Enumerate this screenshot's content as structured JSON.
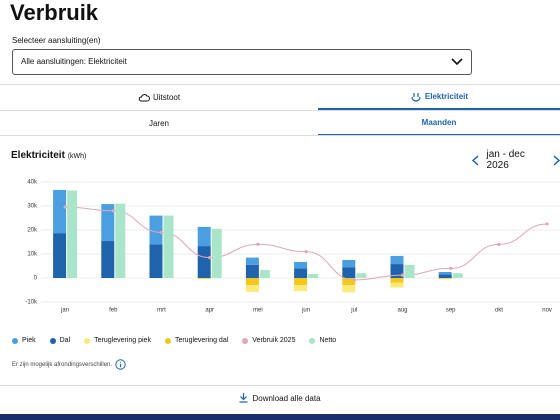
{
  "header": {
    "title": "Verbruik"
  },
  "select": {
    "label": "Selecteer aansluiting(en)",
    "value": "Alle aansluitingen: Elektriciteit"
  },
  "tabs": [
    "Uitstoot",
    "Elektriciteit"
  ],
  "periods": [
    "Jaren",
    "Maanden"
  ],
  "note": "Er zijn mogelijk afrondingsverschillen.",
  "download": "Download alle data",
  "chart_data": {
    "type": "bar",
    "title": "Elektriciteit",
    "unit": "(kWh)",
    "period": "jan - dec 2026",
    "categories": [
      "jan",
      "feb",
      "mrt",
      "apr",
      "mei",
      "jun",
      "jul",
      "aug",
      "sep",
      "okt",
      "nov"
    ],
    "ylim": [
      -10000,
      40000
    ],
    "yticks": [
      {
        "value": -10000,
        "label": "-10k"
      },
      {
        "value": 0,
        "label": "0"
      },
      {
        "value": 10000,
        "label": "10k"
      },
      {
        "value": 20000,
        "label": "20k"
      },
      {
        "value": 30000,
        "label": "30k"
      },
      {
        "value": 40000,
        "label": "40k"
      }
    ],
    "grid": true,
    "series": [
      {
        "name": "Piek",
        "type": "stacked-bar",
        "color": "#4b9fe1",
        "values": [
          18000,
          15400,
          12000,
          8000,
          3000,
          2700,
          3000,
          3400,
          1000,
          null,
          null
        ]
      },
      {
        "name": "Dal",
        "type": "stacked-bar",
        "color": "#1f63ad",
        "values": [
          18700,
          15400,
          14000,
          13300,
          5500,
          4000,
          4500,
          5800,
          1500,
          null,
          null
        ]
      },
      {
        "name": "Teruglevering piek",
        "type": "stacked-bar",
        "color": "#fde978",
        "values": [
          null,
          null,
          null,
          -300,
          -2800,
          -2500,
          -3000,
          -2000,
          -300,
          null,
          null
        ]
      },
      {
        "name": "Teruglevering dal",
        "type": "stacked-bar",
        "color": "#f2c81c",
        "values": [
          null,
          null,
          null,
          -200,
          -3000,
          -3000,
          -3000,
          -2000,
          -200,
          null,
          null
        ]
      },
      {
        "name": "Verbruik 2025",
        "type": "line",
        "color": "#e0a7b6",
        "values": [
          29600,
          28000,
          19000,
          8500,
          14000,
          11000,
          -800,
          1200,
          4000,
          14000,
          22500
        ]
      },
      {
        "name": "Netto",
        "type": "bar",
        "color": "#a9e5c9",
        "values": [
          36500,
          31000,
          26000,
          20500,
          3300,
          1700,
          2000,
          5500,
          2000,
          null,
          null
        ]
      }
    ]
  }
}
